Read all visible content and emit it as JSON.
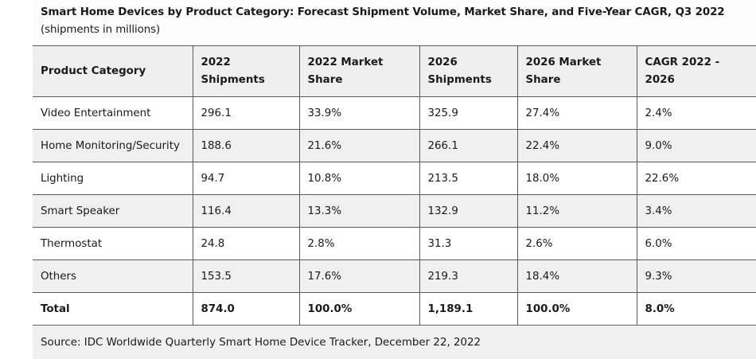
{
  "caption": {
    "title_bold": "Smart Home Devices by Product Category: Forecast Shipment Volume, Market Share, and Five-Year CAGR, Q3 2022",
    "title_suffix": " (shipments in millions)"
  },
  "table": {
    "headers": [
      "Product Category",
      "2022 Shipments",
      "2022 Market Share",
      "2026 Shipments",
      "2026 Market Share",
      "CAGR 2022 - 2026"
    ],
    "rows": [
      [
        "Video Entertainment",
        "296.1",
        "33.9%",
        "325.9",
        "27.4%",
        "2.4%"
      ],
      [
        "Home Monitoring/Security",
        "188.6",
        "21.6%",
        "266.1",
        "22.4%",
        "9.0%"
      ],
      [
        "Lighting",
        "94.7",
        "10.8%",
        "213.5",
        "18.0%",
        "22.6%"
      ],
      [
        "Smart Speaker",
        "116.4",
        "13.3%",
        "132.9",
        "11.2%",
        "3.4%"
      ],
      [
        "Thermostat",
        "24.8",
        "2.8%",
        "31.3",
        "2.6%",
        "6.0%"
      ],
      [
        "Others",
        "153.5",
        "17.6%",
        "219.3",
        "18.4%",
        "9.3%"
      ]
    ],
    "total": [
      "Total",
      "874.0",
      "100.0%",
      "1,189.1",
      "100.0%",
      "8.0%"
    ]
  },
  "source": "Source: IDC Worldwide Quarterly Smart Home Device Tracker, December 22, 2022",
  "chart_data": {
    "type": "table",
    "title": "Smart Home Devices by Product Category: Forecast Shipment Volume, Market Share, and Five-Year CAGR, Q3 2022 (shipments in millions)",
    "columns": [
      "Product Category",
      "2022 Shipments",
      "2022 Market Share",
      "2026 Shipments",
      "2026 Market Share",
      "CAGR 2022 - 2026"
    ],
    "categories": [
      "Video Entertainment",
      "Home Monitoring/Security",
      "Lighting",
      "Smart Speaker",
      "Thermostat",
      "Others",
      "Total"
    ],
    "series": [
      {
        "name": "2022 Shipments",
        "values": [
          296.1,
          188.6,
          94.7,
          116.4,
          24.8,
          153.5,
          874.0
        ]
      },
      {
        "name": "2022 Market Share",
        "values": [
          33.9,
          21.6,
          10.8,
          13.3,
          2.8,
          17.6,
          100.0
        ]
      },
      {
        "name": "2026 Shipments",
        "values": [
          325.9,
          266.1,
          213.5,
          132.9,
          31.3,
          219.3,
          1189.1
        ]
      },
      {
        "name": "2026 Market Share",
        "values": [
          27.4,
          22.4,
          18.0,
          11.2,
          2.6,
          18.4,
          100.0
        ]
      },
      {
        "name": "CAGR 2022 - 2026",
        "values": [
          2.4,
          9.0,
          22.6,
          3.4,
          6.0,
          9.3,
          8.0
        ]
      }
    ],
    "units": "shipments in millions; shares and CAGR in percent",
    "source": "IDC Worldwide Quarterly Smart Home Device Tracker, December 22, 2022"
  }
}
